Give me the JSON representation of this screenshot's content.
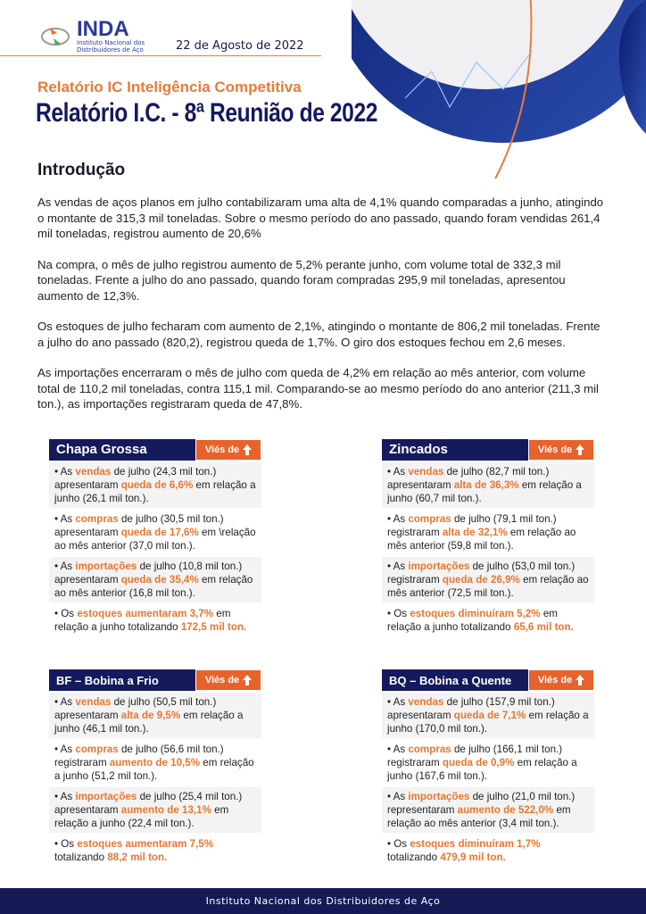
{
  "header": {
    "logo_name": "INDA",
    "logo_sub": "Instituto Nacional dos Distribuidores de Aço",
    "date": "22 de Agosto de 2022",
    "subtitle": "Relatório IC Inteligência Competitiva",
    "title": "Relatório I.C. - 8ª Reunião de 2022"
  },
  "colors": {
    "navy": "#151a5c",
    "orange": "#e8622c"
  },
  "intro": {
    "heading": "Introdução",
    "paragraphs": [
      "As vendas de aços planos em julho contabilizaram uma alta de 4,1% quando comparadas a junho, atingindo o montante de 315,3 mil toneladas. Sobre o mesmo período do ano passado, quando foram vendidas 261,4 mil toneladas, registrou aumento de 20,6%",
      "Na compra, o mês de julho registrou aumento de 5,2% perante junho, com volume total de 332,3 mil toneladas. Frente a julho do ano passado, quando foram compradas 295,9 mil toneladas, apresentou aumento de 12,3%.",
      "Os estoques de julho fecharam com aumento de 2,1%, atingindo o montante de 806,2 mil toneladas. Frente a julho do ano passado (820,2), registrou queda de 1,7%. O giro dos estoques fechou em 2,6 meses.",
      "As importações encerraram o mês de julho com queda de 4,2% em relação ao mês anterior, com volume total de 110,2 mil toneladas, contra 115,1 mil. Comparando-se ao mesmo período do ano anterior (211,3 mil ton.), as importações registraram queda de 47,8%."
    ]
  },
  "cards": [
    {
      "title": "Chapa Grossa",
      "vies": "Viés de",
      "vies_icon": "arrow-up",
      "bullets": [
        [
          [
            "•  As ",
            0
          ],
          [
            "vendas",
            1
          ],
          [
            " de julho (24,3 mil ton.) apresentaram ",
            0
          ],
          [
            "queda de 6,6%",
            1
          ],
          [
            " em relação a junho (26,1 mil ton.).",
            0
          ]
        ],
        [
          [
            "• As ",
            0
          ],
          [
            "compras",
            1
          ],
          [
            " de julho (30,5 mil ton.) apresentaram ",
            0
          ],
          [
            "queda de 17,6%",
            1
          ],
          [
            " em \\relação ao mês anterior (37,0 mil ton.).",
            0
          ]
        ],
        [
          [
            "• As ",
            0
          ],
          [
            "importações",
            1
          ],
          [
            " de julho (10,8 mil ton.) apresentaram ",
            0
          ],
          [
            "queda de 35,4%",
            1
          ],
          [
            " em relação ao mês anterior (16,8 mil ton.).",
            0
          ]
        ],
        [
          [
            "• Os ",
            0
          ],
          [
            "estoques aumentaram 3,7%",
            1
          ],
          [
            " em relação a junho totalizando ",
            0
          ],
          [
            "172,5 mil ton.",
            1
          ]
        ]
      ]
    },
    {
      "title": "Zincados",
      "vies": "Viés de",
      "vies_icon": "arrow-up",
      "bullets": [
        [
          [
            "• As ",
            0
          ],
          [
            "vendas",
            1
          ],
          [
            " de julho (82,7 mil ton.) apresentaram ",
            0
          ],
          [
            "alta de 36,3%",
            1
          ],
          [
            " em relação a junho (60,7 mil ton.).",
            0
          ]
        ],
        [
          [
            "• As ",
            0
          ],
          [
            "compras",
            1
          ],
          [
            " de julho (79,1 mil ton.) registraram ",
            0
          ],
          [
            "alta de 32,1%",
            1
          ],
          [
            " em relação ao mês anterior (59,8 mil ton.).",
            0
          ]
        ],
        [
          [
            "• As ",
            0
          ],
          [
            "importações",
            1
          ],
          [
            " de julho (53,0 mil ton.) registraram ",
            0
          ],
          [
            "queda de 26,9%",
            1
          ],
          [
            " em relação ao mês anterior (72,5 mil ton.).",
            0
          ]
        ],
        [
          [
            "• Os ",
            0
          ],
          [
            "estoques diminuíram 5,2%",
            1
          ],
          [
            " em relação a junho totalizando ",
            0
          ],
          [
            "65,6 mil ton.",
            1
          ]
        ]
      ]
    },
    {
      "title": "BF – Bobina a Frio",
      "vies": "Viés de",
      "vies_icon": "arrow-up",
      "bullets": [
        [
          [
            "• As ",
            0
          ],
          [
            "vendas",
            1
          ],
          [
            " de julho (50,5 mil ton.) apresentaram ",
            0
          ],
          [
            "alta de 9,5%",
            1
          ],
          [
            " em relação a junho (46,1 mil ton.).",
            0
          ]
        ],
        [
          [
            "• As ",
            0
          ],
          [
            "compras",
            1
          ],
          [
            " de julho (56,6 mil ton.) registraram ",
            0
          ],
          [
            "aumento de 10,5%",
            1
          ],
          [
            " em relação a junho (51,2 mil ton.).",
            0
          ]
        ],
        [
          [
            "• As ",
            0
          ],
          [
            "importações",
            1
          ],
          [
            " de julho (25,4 mil ton.) apresentaram ",
            0
          ],
          [
            "aumento de 13,1%",
            1
          ],
          [
            " em relação a junho (22,4 mil ton.).",
            0
          ]
        ],
        [
          [
            "• Os ",
            0
          ],
          [
            "estoques aumentaram 7,5%",
            1
          ],
          [
            " totalizando ",
            0
          ],
          [
            "88,2 mil ton.",
            1
          ]
        ]
      ]
    },
    {
      "title": "BQ – Bobina a Quente",
      "vies": "Viés de",
      "vies_icon": "arrow-up",
      "bullets": [
        [
          [
            "• As ",
            0
          ],
          [
            "vendas",
            1
          ],
          [
            " de julho (157,9 mil ton.) apresentaram ",
            0
          ],
          [
            "queda de 7,1%",
            1
          ],
          [
            " em relação a junho (170,0 mil ton.).",
            0
          ]
        ],
        [
          [
            "• As ",
            0
          ],
          [
            "compras",
            1
          ],
          [
            " de julho (166,1 mil ton.) registraram ",
            0
          ],
          [
            "queda de 0,9%",
            1
          ],
          [
            " em relação a junho (167,6 mil ton.).",
            0
          ]
        ],
        [
          [
            "• As ",
            0
          ],
          [
            "importações",
            1
          ],
          [
            " de julho (21,0 mil ton.) representaram ",
            0
          ],
          [
            "aumento de 522,0%",
            1
          ],
          [
            " em relação ao mês anterior (3,4 mil ton.).",
            0
          ]
        ],
        [
          [
            "• Os ",
            0
          ],
          [
            "estoques diminuíram 1,7%",
            1
          ],
          [
            " totalizando ",
            0
          ],
          [
            "479,9 mil ton.",
            1
          ]
        ]
      ]
    }
  ],
  "footer": "Instituto Nacional dos Distribuidores de Aço"
}
